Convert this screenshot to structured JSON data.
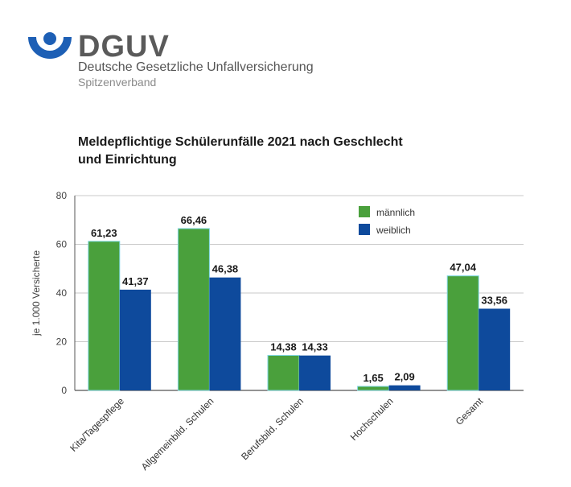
{
  "logo": {
    "wordmark": "DGUV",
    "name": "Deutsche Gesetzliche Unfallversicherung",
    "sub": "Spitzenverband",
    "color": "#1d5fb5"
  },
  "chart_data": {
    "type": "bar",
    "title_line1": "Meldepflichtige Schülerunfälle 2021 nach Geschlecht",
    "title_line2": "und Einrichtung",
    "ylabel": "je 1.000 Versicherte",
    "xlabel": "",
    "ylim": [
      0,
      80
    ],
    "yticks": [
      0,
      20,
      40,
      60,
      80
    ],
    "grid": true,
    "legend_position": "top-right",
    "categories": [
      "Kita/Tagespflege",
      "Allgemeinbild. Schulen",
      "Berufsbild. Schulen",
      "Hochschulen",
      "Gesamt"
    ],
    "series": [
      {
        "name": "männlich",
        "color": "#4aa03c",
        "values": [
          61.23,
          66.46,
          14.38,
          1.65,
          47.04
        ],
        "labels": [
          "61,23",
          "66,46",
          "14,38",
          "1,65",
          "47,04"
        ]
      },
      {
        "name": "weiblich",
        "color": "#0e4a9c",
        "values": [
          41.37,
          46.38,
          14.33,
          2.09,
          33.56
        ],
        "labels": [
          "41,37",
          "46,38",
          "14,33",
          "2,09",
          "33,56"
        ]
      }
    ]
  }
}
